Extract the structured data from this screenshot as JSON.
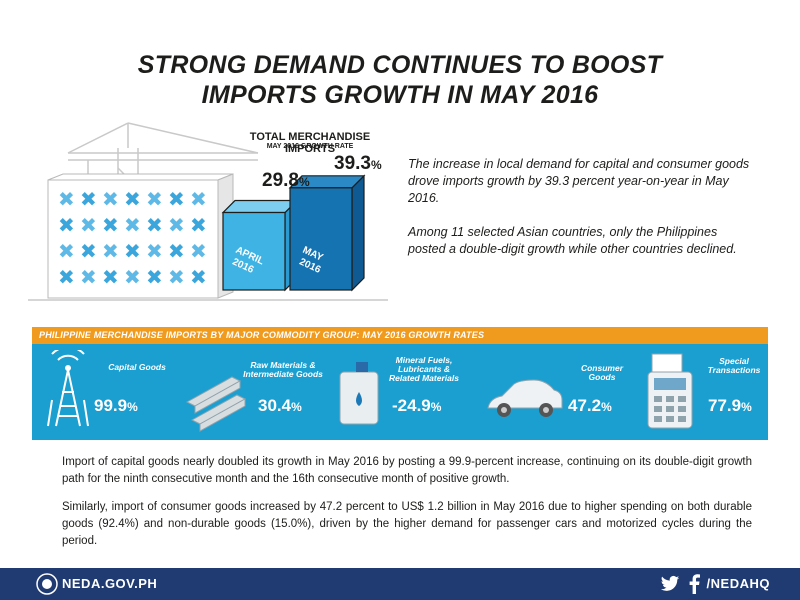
{
  "title": {
    "line1": "STRONG DEMAND CONTINUES TO BOOST",
    "line2": "IMPORTS GROWTH IN MAY 2016"
  },
  "hero": {
    "heading": "TOTAL MERCHANDISE IMPORTS",
    "subheading": "MAY 2016 GROWTH RATE"
  },
  "chart_data": {
    "type": "bar",
    "title": "TOTAL MERCHANDISE IMPORTS",
    "subtitle": "MAY 2016 GROWTH RATE",
    "categories": [
      "APRIL 2016",
      "MAY 2016"
    ],
    "values": [
      29.8,
      39.3
    ],
    "value_labels": [
      "29.8",
      "39.3"
    ],
    "unit": "%",
    "colors": [
      "#3fb3e3",
      "#1673b1"
    ]
  },
  "intro": {
    "paragraph1": "The increase in local demand for capital and consumer goods drove imports growth by 39.3 percent year-on-year in May 2016.",
    "paragraph2": "Among 11 selected Asian countries, only the Philippines posted a double-digit growth while other countries declined."
  },
  "commodity": {
    "header": "PHILIPPINE MERCHANDISE IMPORTS BY MAJOR COMMODITY GROUP: MAY 2016 GROWTH RATES",
    "items": [
      {
        "label": "Capital Goods",
        "value": "99.9",
        "unit": "%",
        "icon": "tower-icon"
      },
      {
        "label": "Raw Materials & Intermediate Goods",
        "value": "30.4",
        "unit": "%",
        "icon": "steel-beams-icon"
      },
      {
        "label": "Mineral Fuels, Lubricants & Related Materials",
        "value": "-24.9",
        "unit": "%",
        "icon": "fuel-jug-icon"
      },
      {
        "label": "Consumer Goods",
        "value": "47.2",
        "unit": "%",
        "icon": "car-icon"
      },
      {
        "label": "Special Transactions",
        "value": "77.9",
        "unit": "%",
        "icon": "card-terminal-icon"
      }
    ]
  },
  "body": {
    "paragraph1": "Import of capital goods nearly doubled its growth in May 2016 by posting a 99.9-percent increase, continuing on its double-digit growth path for the ninth consecutive month and the 16th consecutive month of positive growth.",
    "paragraph2": "Similarly, import of consumer goods increased by 47.2 percent to US$ 1.2 billion in May 2016 due to higher spending on both durable goods (92.4%) and non-durable goods (15.0%), driven by the higher demand for passenger cars and motorized cycles during the period."
  },
  "footer": {
    "site": "NEDA.GOV.PH",
    "handle": "/NEDAHQ"
  },
  "colors": {
    "accent_orange": "#f09a1e",
    "panel_blue": "#1b9fd0",
    "footer_navy": "#203a72",
    "bar_light": "#3fb3e3",
    "bar_dark": "#1673b1"
  }
}
